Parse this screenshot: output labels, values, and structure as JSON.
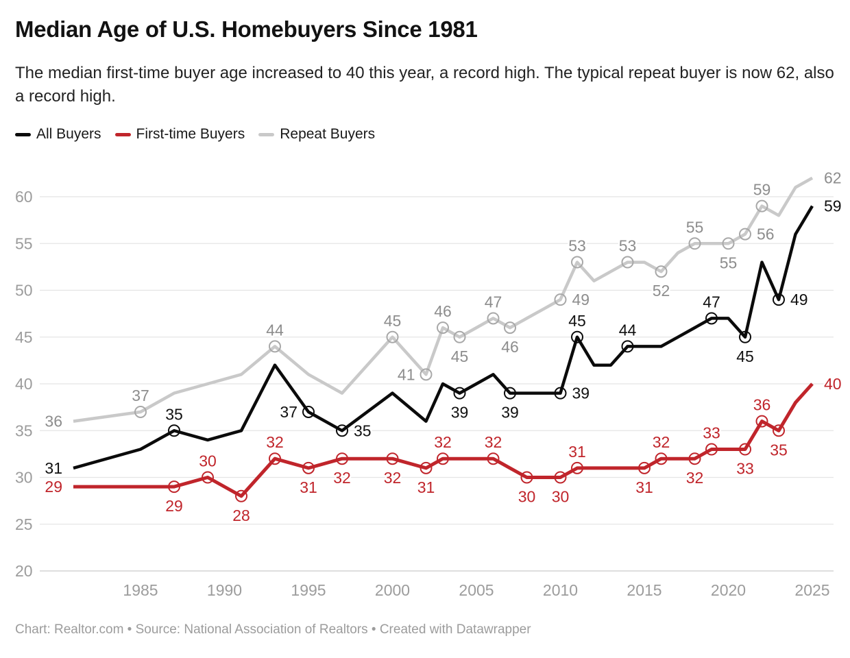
{
  "header": {
    "title": "Median Age of U.S. Homebuyers Since 1981",
    "subtitle": "The median first-time buyer age increased to 40 this year, a record high. The typical repeat buyer is now 62, also a record high."
  },
  "legend": {
    "items": [
      {
        "label": "All Buyers",
        "color": "#0b0b0b"
      },
      {
        "label": "First-time Buyers",
        "color": "#c0252b"
      },
      {
        "label": "Repeat Buyers",
        "color": "#c9c9c9"
      }
    ]
  },
  "footer": {
    "text": "Chart: Realtor.com • Source: National Association of Realtors • Created with Datawrapper"
  },
  "chart_data": {
    "type": "line",
    "title": "Median Age of U.S. Homebuyers Since 1981",
    "xlabel": "",
    "ylabel": "",
    "grid": "horizontal",
    "legend_position": "top-left",
    "x_axis": {
      "range": [
        1981,
        2025
      ],
      "ticks": [
        1985,
        1990,
        1995,
        2000,
        2005,
        2010,
        2015,
        2020,
        2025
      ]
    },
    "y_axis": {
      "range": [
        20,
        62
      ],
      "ticks": [
        20,
        25,
        30,
        35,
        40,
        45,
        50,
        55,
        60
      ]
    },
    "colors": {
      "axis_text": "#9c9c9c",
      "gridline": "#e4e4e4",
      "baseline": "#c9c9c9"
    },
    "series": [
      {
        "name": "Repeat Buyers",
        "color": "#c9c9c9",
        "marker_color": "#a8a8a8",
        "label_color": "#8d8d8d",
        "width": 4.5,
        "points": [
          [
            1981,
            36
          ],
          [
            1985,
            37
          ],
          [
            1987,
            39
          ],
          [
            1989,
            40
          ],
          [
            1991,
            41
          ],
          [
            1993,
            44
          ],
          [
            1995,
            41
          ],
          [
            1997,
            39
          ],
          [
            2000,
            45
          ],
          [
            2002,
            41
          ],
          [
            2003,
            46
          ],
          [
            2004,
            45
          ],
          [
            2005,
            46
          ],
          [
            2006,
            47
          ],
          [
            2007,
            46
          ],
          [
            2008,
            47
          ],
          [
            2009,
            48
          ],
          [
            2010,
            49
          ],
          [
            2011,
            53
          ],
          [
            2012,
            51
          ],
          [
            2013,
            52
          ],
          [
            2014,
            53
          ],
          [
            2015,
            53
          ],
          [
            2016,
            52
          ],
          [
            2017,
            54
          ],
          [
            2018,
            55
          ],
          [
            2019,
            55
          ],
          [
            2020,
            55
          ],
          [
            2021,
            56
          ],
          [
            2022,
            59
          ],
          [
            2023,
            58
          ],
          [
            2024,
            61
          ],
          [
            2025,
            62
          ]
        ],
        "labels": {
          "1981": "left",
          "1985": "above",
          "1993": "above",
          "2000": "above",
          "2002": "left",
          "2003": "above",
          "2004": "below",
          "2006": "above",
          "2007": "below",
          "2010": "right",
          "2011": "above",
          "2014": "above",
          "2016": "below",
          "2018": "above",
          "2020": "below",
          "2021": "right",
          "2022": "above",
          "2025": "right"
        }
      },
      {
        "name": "All Buyers",
        "color": "#0b0b0b",
        "marker_color": "#0b0b0b",
        "label_color": "#111111",
        "width": 4.5,
        "points": [
          [
            1981,
            31
          ],
          [
            1985,
            33
          ],
          [
            1987,
            35
          ],
          [
            1989,
            34
          ],
          [
            1991,
            35
          ],
          [
            1993,
            42
          ],
          [
            1995,
            37
          ],
          [
            1997,
            35
          ],
          [
            2000,
            39
          ],
          [
            2002,
            36
          ],
          [
            2003,
            40
          ],
          [
            2004,
            39
          ],
          [
            2005,
            40
          ],
          [
            2006,
            41
          ],
          [
            2007,
            39
          ],
          [
            2008,
            39
          ],
          [
            2009,
            39
          ],
          [
            2010,
            39
          ],
          [
            2011,
            45
          ],
          [
            2012,
            42
          ],
          [
            2013,
            42
          ],
          [
            2014,
            44
          ],
          [
            2015,
            44
          ],
          [
            2016,
            44
          ],
          [
            2017,
            45
          ],
          [
            2018,
            46
          ],
          [
            2019,
            47
          ],
          [
            2020,
            47
          ],
          [
            2021,
            45
          ],
          [
            2022,
            53
          ],
          [
            2023,
            49
          ],
          [
            2024,
            56
          ],
          [
            2025,
            59
          ]
        ],
        "labels": {
          "1981": "left",
          "1987": "above",
          "1995": "left",
          "1997": "right",
          "2004": "below",
          "2007": "below",
          "2010": "right",
          "2011": "above",
          "2014": "above",
          "2019": "above",
          "2021": "below",
          "2023": "right",
          "2025": "right"
        }
      },
      {
        "name": "First-time Buyers",
        "color": "#c0252b",
        "marker_color": "#c0252b",
        "label_color": "#c0252b",
        "width": 5,
        "points": [
          [
            1981,
            29
          ],
          [
            1985,
            29
          ],
          [
            1987,
            29
          ],
          [
            1989,
            30
          ],
          [
            1991,
            28
          ],
          [
            1993,
            32
          ],
          [
            1995,
            31
          ],
          [
            1997,
            32
          ],
          [
            2000,
            32
          ],
          [
            2002,
            31
          ],
          [
            2003,
            32
          ],
          [
            2004,
            32
          ],
          [
            2005,
            32
          ],
          [
            2006,
            32
          ],
          [
            2007,
            31
          ],
          [
            2008,
            30
          ],
          [
            2009,
            30
          ],
          [
            2010,
            30
          ],
          [
            2011,
            31
          ],
          [
            2012,
            31
          ],
          [
            2013,
            31
          ],
          [
            2014,
            31
          ],
          [
            2015,
            31
          ],
          [
            2016,
            32
          ],
          [
            2017,
            32
          ],
          [
            2018,
            32
          ],
          [
            2019,
            33
          ],
          [
            2020,
            33
          ],
          [
            2021,
            33
          ],
          [
            2022,
            36
          ],
          [
            2023,
            35
          ],
          [
            2024,
            38
          ],
          [
            2025,
            40
          ]
        ],
        "labels": {
          "1981": "left",
          "1987": "below",
          "1989": "above",
          "1991": "below",
          "1993": "above",
          "1995": "below",
          "1997": "below",
          "2000": "below",
          "2002": "below",
          "2003": "above",
          "2006": "above",
          "2008": "below",
          "2010": "below",
          "2011": "above",
          "2015": "below",
          "2016": "above",
          "2018": "below",
          "2019": "above",
          "2021": "below",
          "2022": "above",
          "2023": "below",
          "2025": "right"
        }
      }
    ]
  }
}
